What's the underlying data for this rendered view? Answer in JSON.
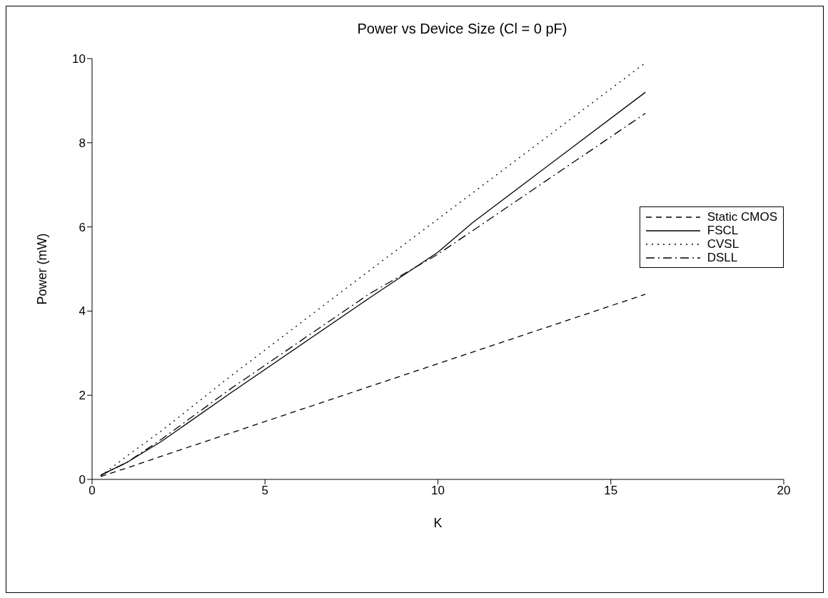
{
  "chart_data": {
    "type": "line",
    "title": "Power vs Device Size (Cl = 0 pF)",
    "xlabel": "K",
    "ylabel": "Power (mW)",
    "xlim": [
      0,
      20
    ],
    "xticks": [
      0,
      5,
      10,
      15,
      20
    ],
    "ylim": [
      0,
      10
    ],
    "yticks": [
      0,
      2,
      4,
      6,
      8,
      10
    ],
    "grid": false,
    "legend": "right",
    "marker": "none",
    "series": [
      {
        "name": "Static CMOS",
        "color": "#000000",
        "line_style": "dashed",
        "x": [
          0.25,
          1,
          2,
          4,
          8,
          16
        ],
        "values": [
          0.07,
          0.27,
          0.55,
          1.1,
          2.2,
          4.4
        ]
      },
      {
        "name": "FSCL",
        "color": "#000000",
        "line_style": "solid",
        "x": [
          0.25,
          1,
          2,
          4,
          8,
          10,
          11,
          16
        ],
        "values": [
          0.1,
          0.4,
          0.9,
          2.05,
          4.3,
          5.4,
          6.1,
          9.2
        ]
      },
      {
        "name": "CVSL",
        "color": "#000000",
        "line_style": "dotted",
        "x": [
          0.25,
          1,
          2,
          4,
          8,
          16
        ],
        "values": [
          0.08,
          0.55,
          1.15,
          2.45,
          4.95,
          9.9
        ]
      },
      {
        "name": "DSLL",
        "color": "#000000",
        "line_style": "dashdot",
        "x": [
          0.25,
          1,
          2,
          4,
          8,
          10,
          16
        ],
        "values": [
          0.1,
          0.4,
          0.95,
          2.15,
          4.4,
          5.35,
          8.7
        ]
      }
    ]
  }
}
